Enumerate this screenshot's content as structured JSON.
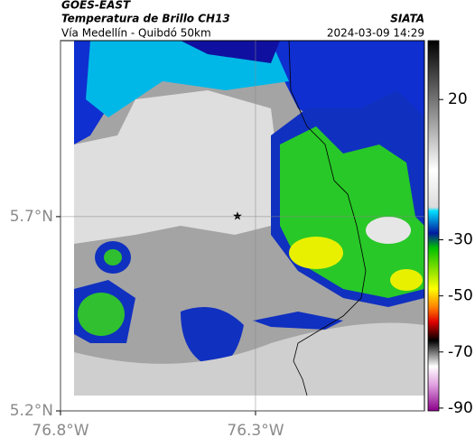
{
  "header": {
    "source": "GOES-EAST",
    "product": "Temperatura de Brillo CH13",
    "region": "Vía Medellín - Quibdó 50km",
    "org": "SIATA",
    "datetime": "2024-03-09 14:29"
  },
  "map": {
    "xlim": [
      -76.8,
      -75.867
    ],
    "ylim": [
      5.2,
      6.153
    ],
    "xticks": [
      {
        "value": -76.8,
        "label": "76.8°W"
      },
      {
        "value": -76.3,
        "label": "76.3°W"
      }
    ],
    "yticks": [
      {
        "value": 5.7,
        "label": "5.7°N"
      },
      {
        "value": 5.2,
        "label": "5.2°N"
      }
    ],
    "grid": true
  },
  "colorbar": {
    "clim": [
      -91,
      41
    ],
    "ticks": [
      20,
      -30,
      -50,
      -70,
      -90
    ]
  }
}
